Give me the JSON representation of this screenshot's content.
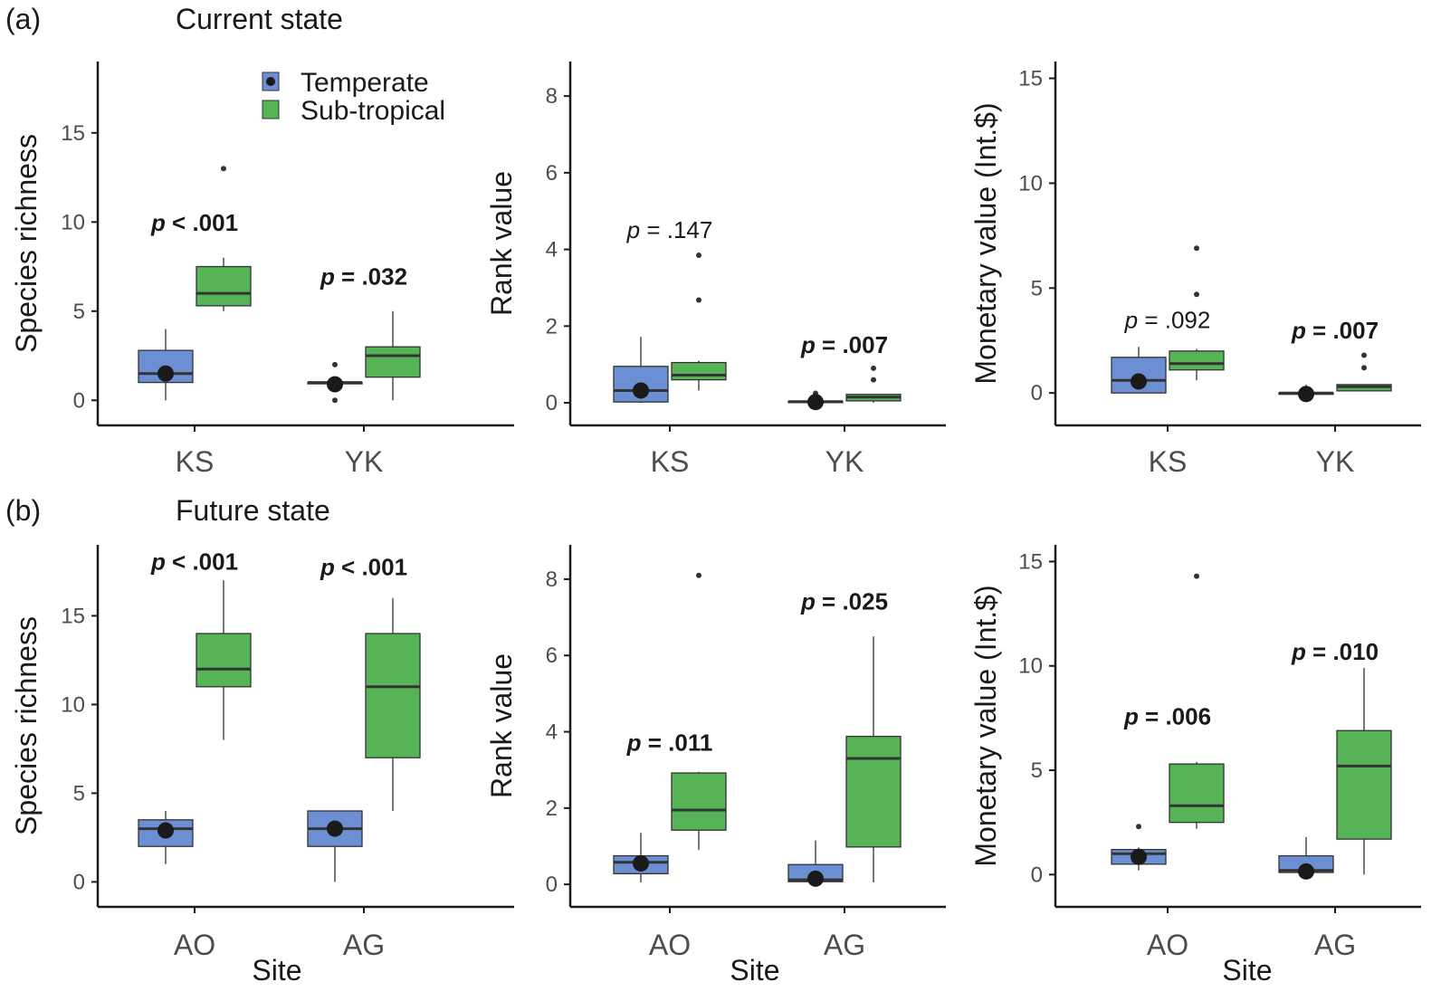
{
  "colors": {
    "temperate": "#6c8fd3",
    "subtropical": "#56b356",
    "axis": "#1a1a1a",
    "median": "#333333",
    "mean_dot": "#1a1a1a"
  },
  "rows": [
    {
      "letter": "(a)",
      "title": "Current state"
    },
    {
      "letter": "(b)",
      "title": "Future state"
    }
  ],
  "legend": [
    {
      "label": "Temperate",
      "color": "#6c8fd3"
    },
    {
      "label": "Sub-tropical",
      "color": "#56b356"
    }
  ],
  "x_title": "Site",
  "chart_data": [
    {
      "type": "box",
      "row": 0,
      "col": 0,
      "ylabel": "Species richness",
      "ylim": [
        -1,
        19
      ],
      "yticks": [
        0,
        5,
        10,
        15
      ],
      "categories": [
        "KS",
        "YK"
      ],
      "boxes": [
        {
          "cat": 0,
          "group": "Temperate",
          "min": 0,
          "q1": 1,
          "median": 1.5,
          "q3": 2.8,
          "max": 4,
          "mean": 1.5,
          "outliers": []
        },
        {
          "cat": 0,
          "group": "Sub-tropical",
          "min": 5,
          "q1": 5.3,
          "median": 6,
          "q3": 7.5,
          "max": 8,
          "mean": null,
          "outliers": [
            13
          ]
        },
        {
          "cat": 1,
          "group": "Temperate",
          "min": 1,
          "q1": 1,
          "median": 1,
          "q3": 1,
          "max": 1,
          "mean": 0.9,
          "outliers": [
            0,
            2
          ]
        },
        {
          "cat": 1,
          "group": "Sub-tropical",
          "min": 0,
          "q1": 1.3,
          "median": 2.5,
          "q3": 3,
          "max": 5,
          "mean": null,
          "outliers": []
        }
      ],
      "annotations": [
        {
          "prefix": "p",
          "text": " < .001",
          "bold": true,
          "cat": 0,
          "y": 9.5
        },
        {
          "prefix": "p",
          "text": " = .032",
          "bold": true,
          "cat": 1,
          "y": 6.5
        }
      ]
    },
    {
      "type": "box",
      "row": 0,
      "col": 1,
      "ylabel": "Rank value",
      "ylim": [
        -0.4,
        8.9
      ],
      "yticks": [
        0,
        2,
        4,
        6,
        8
      ],
      "categories": [
        "KS",
        "YK"
      ],
      "boxes": [
        {
          "cat": 0,
          "group": "Temperate",
          "min": 0,
          "q1": 0.02,
          "median": 0.32,
          "q3": 0.95,
          "max": 1.72,
          "mean": 0.32,
          "outliers": []
        },
        {
          "cat": 0,
          "group": "Sub-tropical",
          "min": 0.32,
          "q1": 0.6,
          "median": 0.72,
          "q3": 1.05,
          "max": 1.1,
          "mean": null,
          "outliers": [
            2.68,
            3.85
          ]
        },
        {
          "cat": 1,
          "group": "Temperate",
          "min": 0,
          "q1": 0.02,
          "median": 0.03,
          "q3": 0.04,
          "max": 0.18,
          "mean": 0.02,
          "outliers": [
            0.25
          ]
        },
        {
          "cat": 1,
          "group": "Sub-tropical",
          "min": 0,
          "q1": 0.05,
          "median": 0.15,
          "q3": 0.22,
          "max": 0.22,
          "mean": null,
          "outliers": [
            0.6,
            0.9
          ]
        }
      ],
      "annotations": [
        {
          "prefix": "p",
          "text": " = .147",
          "bold": false,
          "cat": 0,
          "y": 4.3
        },
        {
          "prefix": "p",
          "text": " = .007",
          "bold": true,
          "cat": 1,
          "y": 1.3
        }
      ]
    },
    {
      "type": "box",
      "row": 0,
      "col": 2,
      "ylabel": "Monetary value (Int.$)",
      "ylim": [
        -1.2,
        15.8
      ],
      "yticks": [
        0,
        5,
        10,
        15
      ],
      "categories": [
        "KS",
        "YK"
      ],
      "boxes": [
        {
          "cat": 0,
          "group": "Temperate",
          "min": 0,
          "q1": 0,
          "median": 0.6,
          "q3": 1.7,
          "max": 2.2,
          "mean": 0.55,
          "outliers": []
        },
        {
          "cat": 0,
          "group": "Sub-tropical",
          "min": 0.6,
          "q1": 1.1,
          "median": 1.4,
          "q3": 2,
          "max": 2.1,
          "mean": null,
          "outliers": [
            4.7,
            6.9
          ]
        },
        {
          "cat": 1,
          "group": "Temperate",
          "min": 0,
          "q1": 0,
          "median": 0,
          "q3": 0,
          "max": 0.4,
          "mean": -0.05,
          "outliers": []
        },
        {
          "cat": 1,
          "group": "Sub-tropical",
          "min": 0.1,
          "q1": 0.1,
          "median": 0.3,
          "q3": 0.4,
          "max": 0.4,
          "mean": null,
          "outliers": [
            1.2,
            1.8
          ]
        }
      ],
      "annotations": [
        {
          "prefix": "p",
          "text": " = .092",
          "bold": false,
          "cat": 0,
          "y": 3.1
        },
        {
          "prefix": "p",
          "text": " = .007",
          "bold": true,
          "cat": 1,
          "y": 2.6
        }
      ]
    },
    {
      "type": "box",
      "row": 1,
      "col": 0,
      "ylabel": "Species richness",
      "ylim": [
        -1,
        19
      ],
      "yticks": [
        0,
        5,
        10,
        15
      ],
      "categories": [
        "AO",
        "AG"
      ],
      "boxes": [
        {
          "cat": 0,
          "group": "Temperate",
          "min": 1,
          "q1": 2,
          "median": 3,
          "q3": 3.5,
          "max": 4,
          "mean": 2.9,
          "outliers": []
        },
        {
          "cat": 0,
          "group": "Sub-tropical",
          "min": 8,
          "q1": 11,
          "median": 12,
          "q3": 14,
          "max": 17,
          "mean": null,
          "outliers": []
        },
        {
          "cat": 1,
          "group": "Temperate",
          "min": 0,
          "q1": 2,
          "median": 3,
          "q3": 4,
          "max": 4,
          "mean": 3,
          "outliers": []
        },
        {
          "cat": 1,
          "group": "Sub-tropical",
          "min": 4,
          "q1": 7,
          "median": 11,
          "q3": 14,
          "max": 16,
          "mean": null,
          "outliers": []
        }
      ],
      "annotations": [
        {
          "prefix": "p",
          "text": " < .001",
          "bold": true,
          "cat": 0,
          "y": 17.6
        },
        {
          "prefix": "p",
          "text": " < .001",
          "bold": true,
          "cat": 1,
          "y": 17.3
        }
      ]
    },
    {
      "type": "box",
      "row": 1,
      "col": 1,
      "ylabel": "Rank value",
      "ylim": [
        -0.4,
        8.9
      ],
      "yticks": [
        0,
        2,
        4,
        6,
        8
      ],
      "categories": [
        "AO",
        "AG"
      ],
      "boxes": [
        {
          "cat": 0,
          "group": "Temperate",
          "min": 0.05,
          "q1": 0.28,
          "median": 0.58,
          "q3": 0.75,
          "max": 1.35,
          "mean": 0.55,
          "outliers": []
        },
        {
          "cat": 0,
          "group": "Sub-tropical",
          "min": 0.9,
          "q1": 1.42,
          "median": 1.95,
          "q3": 2.92,
          "max": 2.95,
          "mean": null,
          "outliers": [
            8.1
          ]
        },
        {
          "cat": 1,
          "group": "Temperate",
          "min": 0,
          "q1": 0.07,
          "median": 0.12,
          "q3": 0.52,
          "max": 1.15,
          "mean": 0.15,
          "outliers": []
        },
        {
          "cat": 1,
          "group": "Sub-tropical",
          "min": 0.05,
          "q1": 0.98,
          "median": 3.3,
          "q3": 3.88,
          "max": 6.5,
          "mean": null,
          "outliers": []
        }
      ],
      "annotations": [
        {
          "prefix": "p",
          "text": " = .011",
          "bold": true,
          "cat": 0,
          "y": 3.5
        },
        {
          "prefix": "p",
          "text": " = .025",
          "bold": true,
          "cat": 1,
          "y": 7.2
        }
      ]
    },
    {
      "type": "box",
      "row": 1,
      "col": 2,
      "ylabel": "Monetary value (Int.$)",
      "ylim": [
        -1.2,
        15.8
      ],
      "yticks": [
        0,
        5,
        10,
        15
      ],
      "categories": [
        "AO",
        "AG"
      ],
      "boxes": [
        {
          "cat": 0,
          "group": "Temperate",
          "min": 0.2,
          "q1": 0.5,
          "median": 1,
          "q3": 1.2,
          "max": 1.3,
          "mean": 0.85,
          "outliers": [
            2.3
          ]
        },
        {
          "cat": 0,
          "group": "Sub-tropical",
          "min": 2.2,
          "q1": 2.5,
          "median": 3.3,
          "q3": 5.3,
          "max": 5.4,
          "mean": null,
          "outliers": [
            14.3
          ]
        },
        {
          "cat": 1,
          "group": "Temperate",
          "min": 0,
          "q1": 0.1,
          "median": 0.2,
          "q3": 0.9,
          "max": 1.8,
          "mean": 0.15,
          "outliers": []
        },
        {
          "cat": 1,
          "group": "Sub-tropical",
          "min": 0,
          "q1": 1.7,
          "median": 5.2,
          "q3": 6.9,
          "max": 9.9,
          "mean": null,
          "outliers": []
        }
      ],
      "annotations": [
        {
          "prefix": "p",
          "text": " = .006",
          "bold": true,
          "cat": 0,
          "y": 7.2
        },
        {
          "prefix": "p",
          "text": " = .010",
          "bold": true,
          "cat": 1,
          "y": 10.3
        }
      ]
    }
  ]
}
